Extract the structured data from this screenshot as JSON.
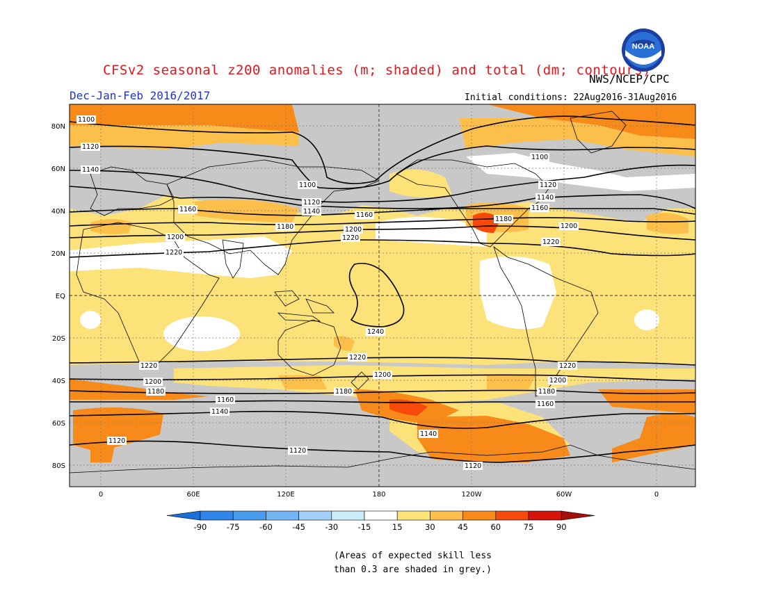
{
  "header": {
    "title": "CFSv2 seasonal z200 anomalies (m; shaded) and total (dm; contours)",
    "agency": "NWS/NCEP/CPC",
    "season": "Dec-Jan-Feb 2016/2017",
    "initial_conditions": "Initial conditions: 22Aug2016-31Aug2016",
    "logo_text": "NOAA"
  },
  "map": {
    "lat_labels": [
      "80N",
      "60N",
      "40N",
      "20N",
      "EQ",
      "20S",
      "40S",
      "60S",
      "80S"
    ],
    "lon_labels": [
      "0",
      "60E",
      "120E",
      "180",
      "120W",
      "60W",
      "0"
    ],
    "contour_labels": [
      "1100",
      "1120",
      "1140",
      "1160",
      "1180",
      "1200",
      "1220",
      "1240"
    ],
    "colors": {
      "grey_low_skill": "#c8c8c8",
      "white_band": "#ffffff",
      "c15_30": "#fde27a",
      "c30_45": "#fbbf4a",
      "c45_60": "#f88a1a",
      "c60_75": "#f54a0a",
      "c75_90": "#d6140a"
    }
  },
  "colorbar": {
    "labels": [
      "-90",
      "-75",
      "-60",
      "-45",
      "-30",
      "-15",
      "15",
      "30",
      "45",
      "60",
      "75",
      "90"
    ],
    "colors": [
      "#1b6fd9",
      "#2f86e8",
      "#4a9cee",
      "#74b6f3",
      "#a3d0f6",
      "#c9ecf9",
      "#ffffff",
      "#fde27a",
      "#fbbf4a",
      "#f88a1a",
      "#f54a0a",
      "#d6140a",
      "#a50f0a"
    ]
  },
  "footnote": {
    "line1": "(Areas of expected skill less",
    "line2": "than 0.3 are shaded in grey.)"
  }
}
